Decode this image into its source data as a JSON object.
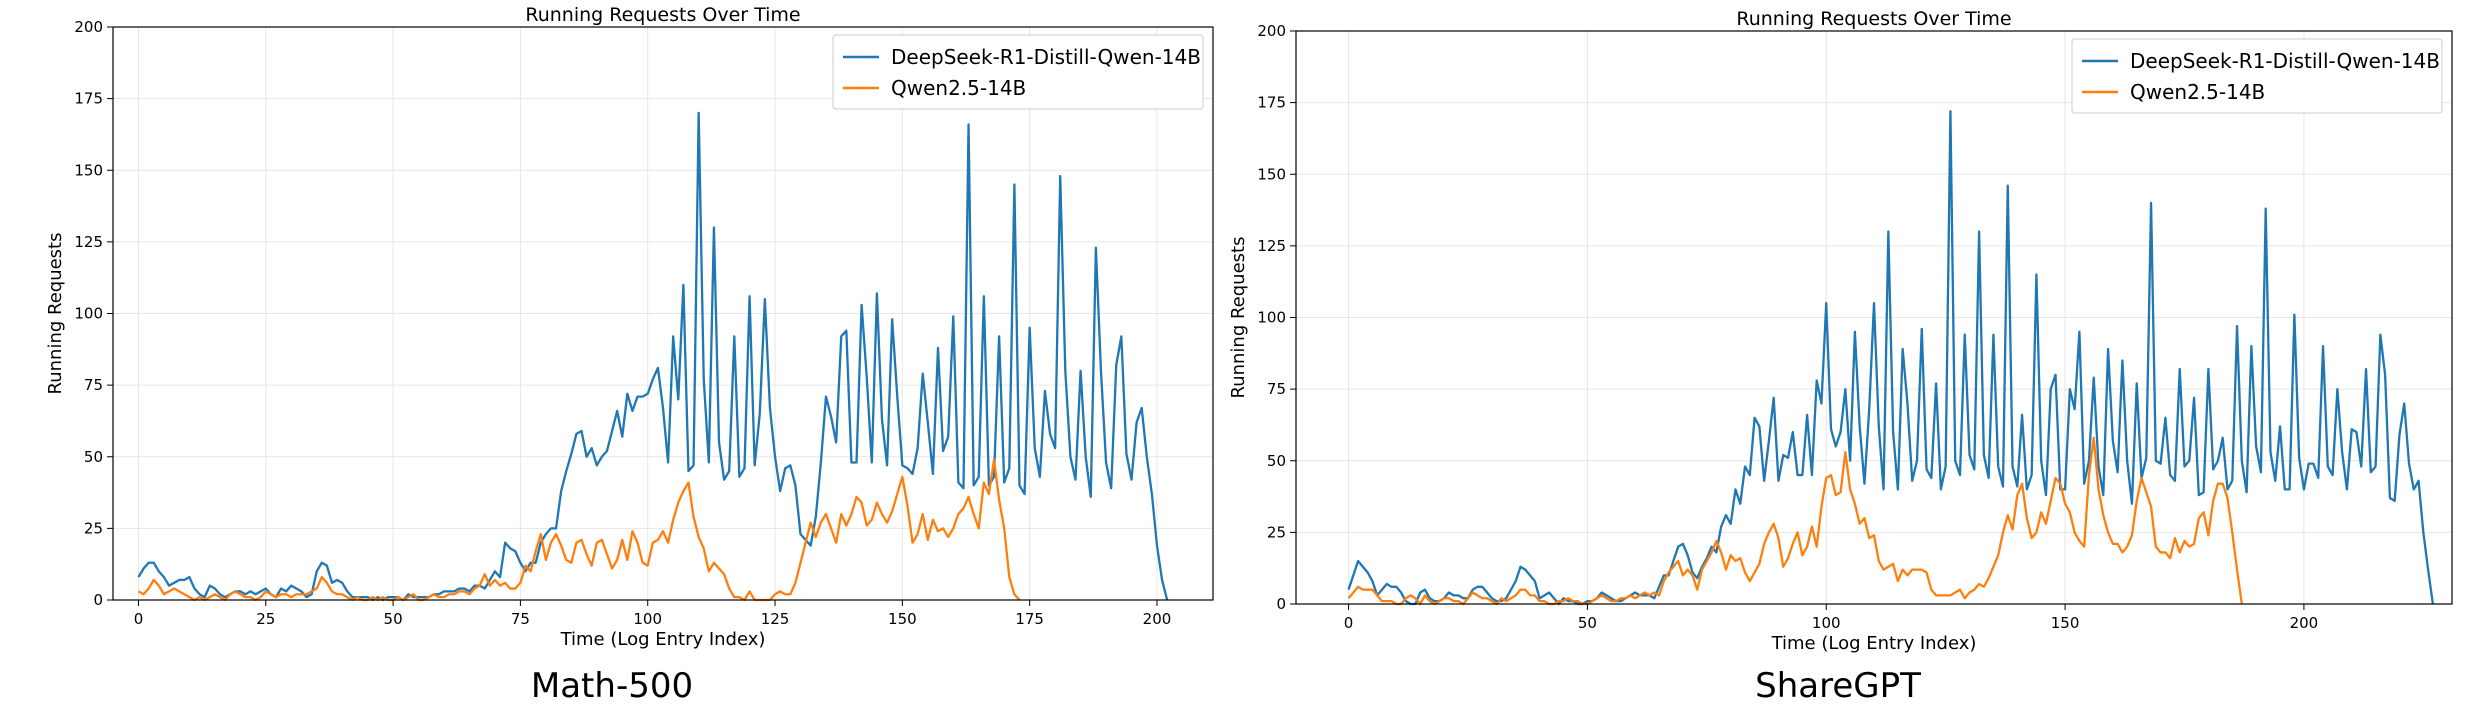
{
  "colors": {
    "series1": "#1f77b4",
    "series2": "#ff7f0e",
    "grid": "#e6e6e6"
  },
  "chart_data": [
    {
      "type": "line",
      "title": "Running Requests Over Time",
      "xlabel": "Time (Log Entry Index)",
      "ylabel": "Running Requests",
      "caption": "Math-500",
      "xlim": [
        -5,
        211
      ],
      "ylim": [
        0,
        200
      ],
      "xticks": [
        0,
        25,
        50,
        75,
        100,
        125,
        150,
        175,
        200
      ],
      "yticks": [
        0,
        25,
        50,
        75,
        100,
        125,
        150,
        175,
        200
      ],
      "grid": true,
      "legend": "upper right",
      "series": [
        {
          "name": "DeepSeek-R1-Distill-Qwen-14B",
          "color": "#1f77b4",
          "values": [
            8,
            11,
            13,
            13,
            10,
            8,
            5,
            6,
            7,
            7,
            8,
            4,
            2,
            1,
            5,
            4,
            2,
            1,
            2,
            3,
            3,
            2,
            3,
            2,
            3,
            4,
            2,
            1,
            4,
            3,
            5,
            4,
            3,
            1,
            2,
            10,
            13,
            12,
            6,
            7,
            6,
            3,
            1,
            1,
            1,
            1,
            0,
            1,
            0,
            1,
            1,
            1,
            0,
            2,
            1,
            1,
            1,
            1,
            2,
            2,
            3,
            3,
            3,
            4,
            4,
            3,
            5,
            5,
            4,
            7,
            10,
            8,
            20,
            18,
            17,
            13,
            10,
            13,
            13,
            20,
            23,
            25,
            25,
            38,
            45,
            51,
            58,
            59,
            50,
            53,
            47,
            50,
            52,
            59,
            66,
            57,
            72,
            66,
            71,
            71,
            72,
            77,
            81,
            67,
            48,
            92,
            70,
            110,
            45,
            47,
            170,
            77,
            48,
            130,
            55,
            42,
            45,
            92,
            43,
            46,
            106,
            47,
            65,
            105,
            67,
            50,
            38,
            46,
            47,
            40,
            23,
            21,
            19,
            29,
            48,
            71,
            64,
            55,
            92,
            94,
            48,
            48,
            103,
            78,
            48,
            107,
            63,
            47,
            98,
            71,
            47,
            46,
            44,
            53,
            79,
            62,
            44,
            88,
            52,
            57,
            99,
            41,
            39,
            166,
            40,
            43,
            106,
            40,
            43,
            92,
            41,
            46,
            145,
            40,
            37,
            95,
            53,
            43,
            73,
            58,
            53,
            148,
            80,
            50,
            42,
            80,
            50,
            36,
            123,
            80,
            48,
            39,
            82,
            92,
            51,
            42,
            62,
            67,
            50,
            37,
            19,
            7,
            0
          ]
        },
        {
          "name": "Qwen2.5-14B",
          "color": "#ff7f0e",
          "values": [
            3,
            2,
            4,
            7,
            5,
            2,
            3,
            4,
            3,
            2,
            1,
            0,
            1,
            0,
            1,
            2,
            1,
            0,
            2,
            3,
            2,
            1,
            1,
            0,
            1,
            3,
            2,
            1,
            2,
            2,
            1,
            2,
            2,
            2,
            3,
            4,
            8,
            6,
            3,
            2,
            2,
            1,
            0,
            1,
            0,
            0,
            1,
            0,
            1,
            0,
            0,
            1,
            0,
            1,
            2,
            0,
            0,
            1,
            2,
            1,
            1,
            2,
            2,
            3,
            3,
            2,
            4,
            5,
            9,
            5,
            7,
            5,
            6,
            4,
            4,
            6,
            12,
            10,
            17,
            23,
            14,
            20,
            23,
            19,
            14,
            13,
            20,
            21,
            16,
            12,
            20,
            21,
            16,
            11,
            14,
            21,
            14,
            24,
            20,
            13,
            12,
            20,
            21,
            24,
            20,
            28,
            34,
            38,
            41,
            29,
            22,
            18,
            10,
            13,
            11,
            9,
            4,
            1,
            1,
            0,
            3,
            0,
            0,
            0,
            0,
            2,
            3,
            2,
            2,
            6,
            13,
            20,
            27,
            22,
            27,
            30,
            25,
            20,
            30,
            26,
            30,
            36,
            34,
            26,
            28,
            34,
            30,
            27,
            31,
            37,
            43,
            33,
            20,
            23,
            30,
            21,
            28,
            24,
            25,
            22,
            25,
            30,
            32,
            36,
            30,
            25,
            41,
            37,
            49,
            35,
            25,
            8,
            2,
            0
          ]
        }
      ]
    },
    {
      "type": "line",
      "title": "Running Requests Over Time",
      "xlabel": "Time (Log Entry Index)",
      "ylabel": "Running Requests",
      "caption": "ShareGPT",
      "xlim": [
        -11,
        231
      ],
      "ylim": [
        0,
        200
      ],
      "xticks": [
        0,
        50,
        100,
        150,
        200
      ],
      "yticks": [
        0,
        25,
        50,
        75,
        100,
        125,
        150,
        175,
        200
      ],
      "grid": true,
      "legend": "upper right",
      "series": [
        {
          "name": "DeepSeek-R1-Distill-Qwen-14B",
          "color": "#1f77b4",
          "values": [
            5,
            10,
            15,
            13,
            11,
            8,
            3,
            5,
            7,
            6,
            6,
            4,
            1,
            0,
            0,
            4,
            5,
            2,
            1,
            1,
            2,
            4,
            3,
            3,
            2,
            2,
            5,
            6,
            6,
            4,
            2,
            1,
            1,
            2,
            5,
            8,
            13,
            12,
            10,
            8,
            2,
            3,
            4,
            2,
            0,
            2,
            1,
            1,
            0,
            0,
            1,
            1,
            2,
            4,
            3,
            2,
            1,
            1,
            2,
            3,
            4,
            3,
            3,
            3,
            2,
            6,
            10,
            10,
            15,
            20,
            21,
            17,
            11,
            9,
            13,
            16,
            20,
            18,
            27,
            31,
            28,
            40,
            35,
            48,
            45,
            65,
            62,
            43,
            57,
            72,
            43,
            52,
            51,
            60,
            45,
            45,
            66,
            45,
            78,
            70,
            105,
            61,
            55,
            60,
            75,
            50,
            95,
            62,
            42,
            68,
            105,
            62,
            40,
            130,
            60,
            40,
            89,
            70,
            43,
            50,
            96,
            47,
            44,
            77,
            40,
            48,
            172,
            50,
            45,
            94,
            52,
            47,
            130,
            52,
            44,
            94,
            48,
            41,
            146,
            48,
            41,
            66,
            40,
            45,
            115,
            50,
            38,
            75,
            80,
            40,
            40,
            75,
            68,
            95,
            42,
            50,
            79,
            48,
            38,
            89,
            57,
            46,
            85,
            50,
            35,
            77,
            44,
            51,
            140,
            50,
            49,
            65,
            45,
            43,
            82,
            48,
            50,
            72,
            38,
            39,
            82,
            47,
            50,
            58,
            40,
            43,
            97,
            50,
            39,
            90,
            55,
            46,
            138,
            53,
            43,
            62,
            40,
            40,
            101,
            51,
            40,
            49,
            49,
            44,
            90,
            48,
            45,
            75,
            53,
            40,
            61,
            60,
            48,
            82,
            46,
            48,
            94,
            80,
            37,
            36,
            59,
            70,
            49,
            40,
            43,
            25,
            12,
            0
          ]
        },
        {
          "name": "Qwen2.5-14B",
          "color": "#ff7f0e",
          "values": [
            2,
            4,
            6,
            5,
            5,
            5,
            3,
            1,
            1,
            1,
            0,
            0,
            2,
            3,
            2,
            0,
            3,
            1,
            0,
            1,
            2,
            2,
            1,
            1,
            0,
            2,
            4,
            3,
            2,
            2,
            1,
            0,
            2,
            1,
            2,
            3,
            5,
            5,
            3,
            3,
            1,
            1,
            0,
            0,
            1,
            1,
            2,
            1,
            1,
            0,
            0,
            1,
            2,
            3,
            2,
            1,
            1,
            2,
            2,
            3,
            2,
            3,
            4,
            3,
            4,
            3,
            8,
            11,
            13,
            15,
            10,
            12,
            10,
            5,
            12,
            15,
            18,
            22,
            18,
            12,
            17,
            15,
            16,
            11,
            8,
            11,
            14,
            21,
            25,
            28,
            23,
            13,
            16,
            21,
            25,
            17,
            20,
            27,
            20,
            34,
            44,
            45,
            38,
            39,
            53,
            40,
            35,
            28,
            30,
            23,
            24,
            15,
            12,
            13,
            14,
            8,
            12,
            10,
            12,
            12,
            12,
            11,
            5,
            3,
            3,
            3,
            3,
            4,
            5,
            2,
            4,
            5,
            7,
            6,
            9,
            13,
            17,
            25,
            31,
            26,
            38,
            42,
            30,
            23,
            25,
            32,
            28,
            36,
            44,
            42,
            35,
            32,
            25,
            22,
            20,
            45,
            58,
            40,
            31,
            25,
            21,
            21,
            18,
            20,
            24,
            36,
            44,
            39,
            34,
            20,
            18,
            18,
            16,
            23,
            18,
            22,
            20,
            21,
            30,
            32,
            24,
            36,
            42,
            42,
            37,
            25,
            12,
            0
          ]
        }
      ]
    }
  ]
}
